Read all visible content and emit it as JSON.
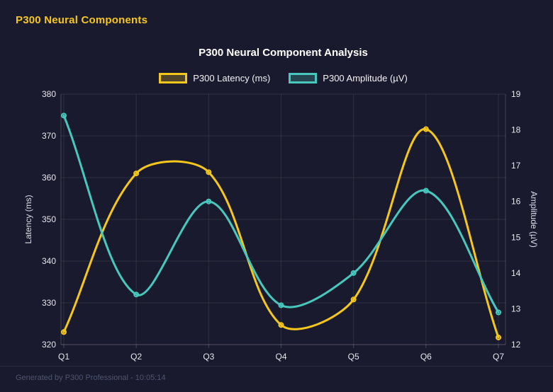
{
  "app": {
    "header_title": "P300 Neural Components",
    "footer_text": "Generated by P300 Professional - 10:05:14"
  },
  "chart_data": {
    "type": "line",
    "title": "P300 Neural Component Analysis",
    "categories": [
      "Q1",
      "Q2",
      "Q3",
      "Q4",
      "Q5",
      "Q6",
      "Q7"
    ],
    "series": [
      {
        "name": "P300 Latency (ms)",
        "axis": "left",
        "color": "#f5c71b",
        "values": [
          323,
          361,
          361.3,
          324.7,
          330.8,
          371.6,
          321.7
        ]
      },
      {
        "name": "P300 Amplitude (µV)",
        "axis": "right",
        "color": "#46c8bd",
        "values": [
          18.4,
          13.4,
          16.0,
          13.1,
          14.0,
          16.3,
          12.9
        ]
      }
    ],
    "y_left": {
      "label": "Latency (ms)",
      "min": 320,
      "max": 380,
      "step": 10
    },
    "y_right": {
      "label": "Amplitude (µV)",
      "min": 12,
      "max": 19,
      "step": 1
    },
    "grid": true,
    "smooth": true,
    "legend_position": "top"
  },
  "colors": {
    "background": "#1a1a2e",
    "header_accent": "#f5c71b",
    "title_text": "#ffffff",
    "axis_text": "#e6e6ee",
    "grid": "rgba(255,255,255,0.09)",
    "axis_border": "rgba(255,255,255,0.18)",
    "footer_text": "#4e546e"
  }
}
